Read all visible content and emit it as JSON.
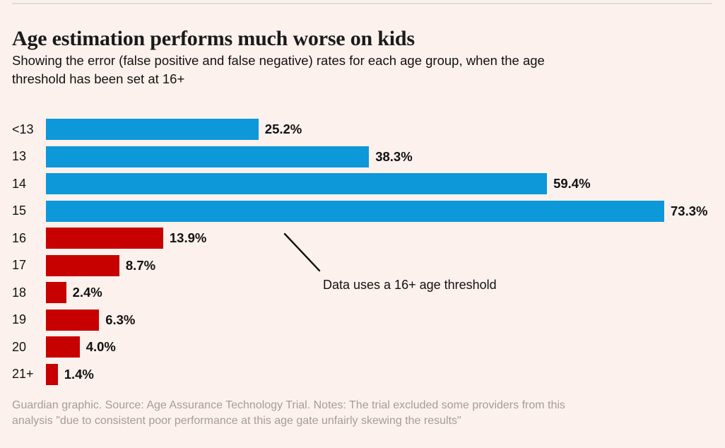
{
  "page": {
    "title": "Age estimation performs much worse on kids",
    "subtitle_lines": [
      "Showing the error (false positive and false negative) rates for each age group, when the age",
      "threshold has been set at 16+"
    ],
    "footer_lines": [
      "Guardian graphic. Source: Age Assurance Technology Trial. Notes: The trial excluded some providers from this",
      "analysis \"due to consistent poor performance at this age gate unfairly skewing the results\""
    ]
  },
  "chart_data": {
    "type": "bar",
    "orientation": "horizontal",
    "title": "Age estimation performs much worse on kids",
    "subtitle": "Showing the error (false positive and false negative) rates for each age group, when the age threshold has been set at 16+",
    "categories": [
      "<13",
      "13",
      "14",
      "15",
      "16",
      "17",
      "18",
      "19",
      "20",
      "21+"
    ],
    "values": [
      25.2,
      38.3,
      59.4,
      73.3,
      13.9,
      8.7,
      2.4,
      6.3,
      4.0,
      1.4
    ],
    "value_labels": [
      "25.2%",
      "38.3%",
      "59.4%",
      "73.3%",
      "13.9%",
      "8.7%",
      "2.4%",
      "6.3%",
      "4.0%",
      "1.4%"
    ],
    "groups": [
      "under",
      "under",
      "under",
      "under",
      "over",
      "over",
      "over",
      "over",
      "over",
      "over"
    ],
    "colors": {
      "under": "#0d98da",
      "over": "#c70000"
    },
    "background_color": "#fdf1ed",
    "unit": "%",
    "xlim": [
      0,
      73.3
    ],
    "value_axis": "hidden",
    "grid": "off",
    "data_labels": "end-of-bar",
    "annotation": "Data uses a 16+ age threshold",
    "source_note": "Guardian graphic. Source: Age Assurance Technology Trial. Notes: The trial excluded some providers from this analysis \"due to consistent poor performance at this age gate unfairly skewing the results\""
  }
}
